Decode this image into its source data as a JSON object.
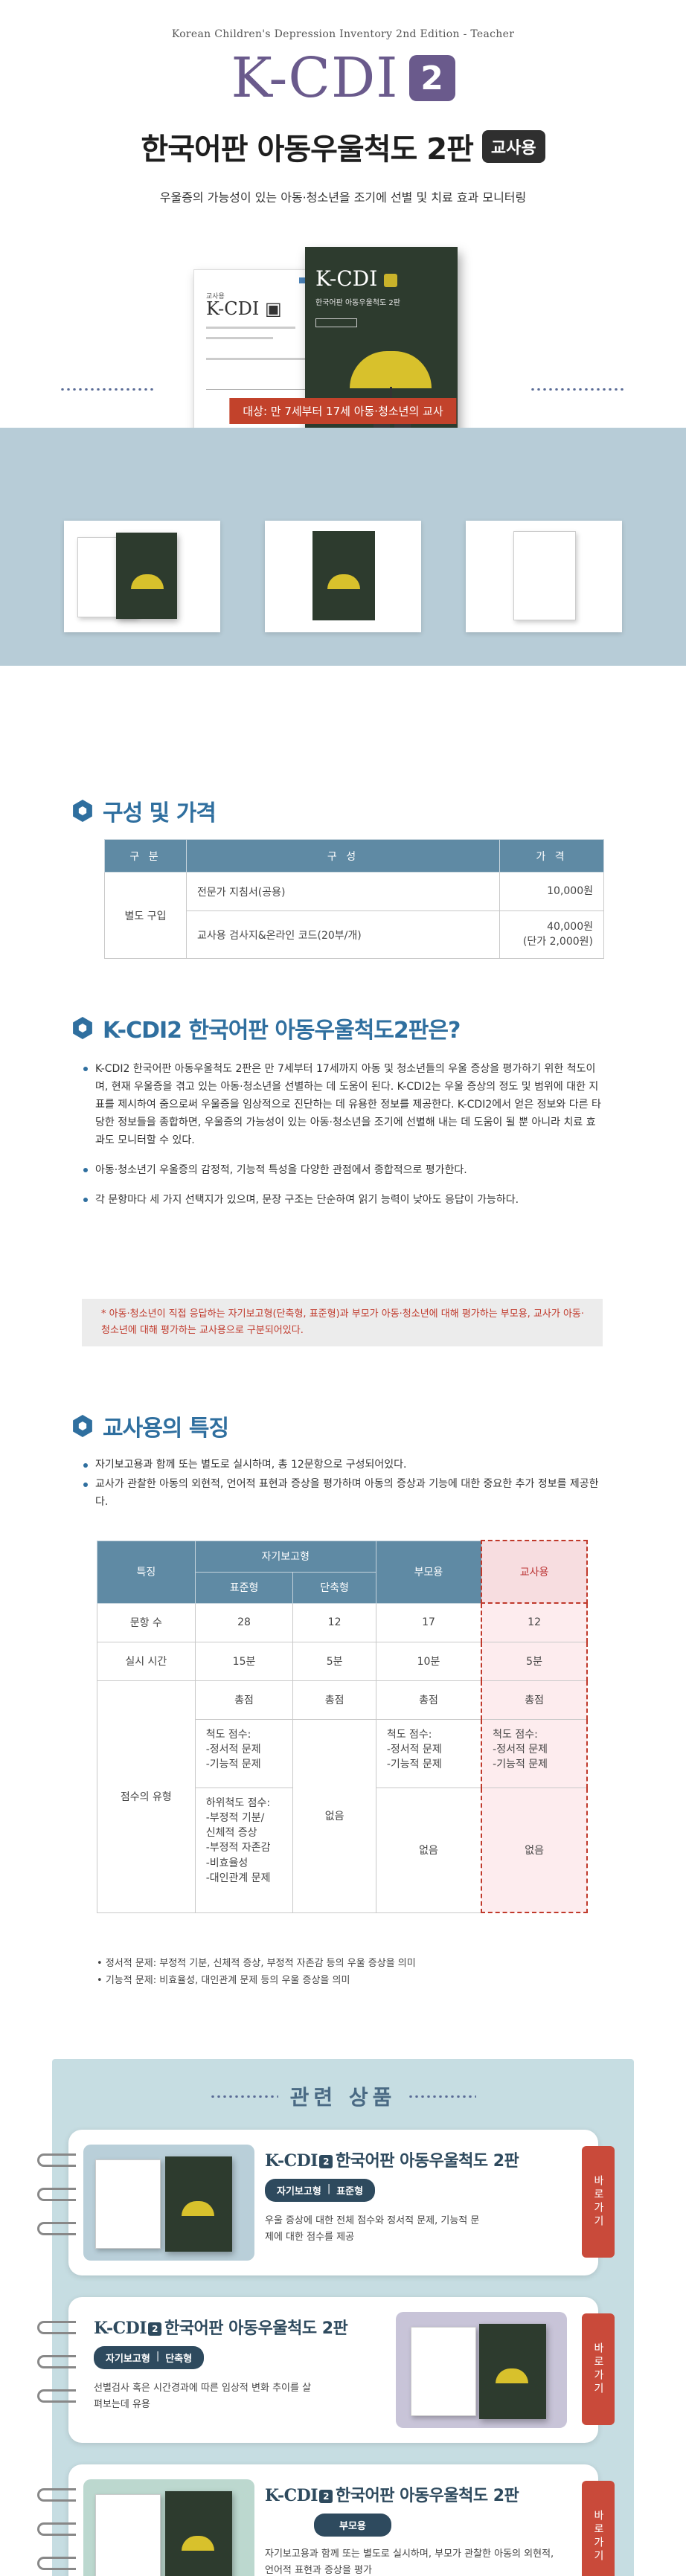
{
  "hero": {
    "eyebrow": "Korean Children's Depression Inventory 2nd Edition - Teacher",
    "logo": "K-CDI",
    "logo_num": "2",
    "title": "한국어판 아동우울척도 2판",
    "title_badge": "교사용",
    "subtitle": "우울증의 가능성이 있는 아동·청소년을 조기에 선별 및 치료 효과 모니터링",
    "target": "대상: 만 7세부터 17세 아동·청소년의 교사"
  },
  "pricing": {
    "heading": "구성 및 가격",
    "columns": [
      "구 분",
      "구 성",
      "가 격"
    ],
    "group_label": "별도 구입",
    "rows": [
      {
        "item": "전문가 지침서(공용)",
        "price": "10,000원"
      },
      {
        "item": "교사용 검사지&온라인 코드(20부/개)",
        "price": "40,000원",
        "price_sub": "(단가 2,000원)"
      }
    ]
  },
  "intro": {
    "heading": "K-CDI2 한국어판 아동우울척도2판은?",
    "bullets": [
      "K-CDI2 한국어판 아동우울척도 2판은 만 7세부터 17세까지 아동 및 청소년들의 우울 증상을 평가하기 위한 척도이며, 현재 우울증을 겪고 있는 아동·청소년을 선별하는 데 도움이 된다. K-CDI2는 우울 증상의 정도 및 범위에 대한 지표를 제시하여 줌으로써 우울증을 임상적으로 진단하는 데 유용한 정보를 제공한다. K-CDI2에서 얻은 정보와 다른 타당한 정보들을 종합하면, 우울증의 가능성이 있는 아동·청소년을 조기에 선별해 내는 데 도움이 될 뿐 아니라 치료 효과도 모니터할 수 있다.",
      "아동·청소년기 우울증의 감정적, 기능적 특성을 다양한 관점에서 종합적으로 평가한다.",
      "각 문항마다 세 가지 선택지가 있으며, 문장 구조는 단순하여 읽기 능력이 낮아도 응답이 가능하다."
    ],
    "note": "* 아동·청소년이 직접 응답하는 자기보고형(단축형, 표준형)과 부모가 아동·청소년에 대해 평가하는 부모용, 교사가 아동·청소년에 대해 평가하는 교사용으로 구분되어있다."
  },
  "features": {
    "heading": "교사용의 특징",
    "bullets": [
      "자기보고용과 함께 또는 별도로 실시하며, 총 12문항으로 구성되어있다.",
      "교사가 관찰한 아동의 외현적, 언어적 표현과 증상을 평가하며 아동의 증상과 기능에 대한 중요한 추가 정보를 제공한다."
    ],
    "table": {
      "h_feature": "특징",
      "h_self": "자기보고형",
      "h_standard": "표준형",
      "h_short": "단축형",
      "h_parent": "부모용",
      "h_teacher": "교사용",
      "rows": [
        {
          "label": "문항 수",
          "standard": "28",
          "short": "12",
          "parent": "17",
          "teacher": "12"
        },
        {
          "label": "실시 시간",
          "standard": "15분",
          "short": "5분",
          "parent": "10분",
          "teacher": "5분"
        }
      ],
      "score_label": "점수의 유형",
      "total": "총점",
      "standard_scale": "척도 점수:\n-정서적 문제\n-기능적 문제",
      "standard_sub": "하위척도 점수:\n-부정적 기분/\n  신체적 증상\n-부정적 자존감\n-비효율성\n-대인관계 문제",
      "short_none": "없음",
      "parent_scale": "척도 점수:\n-정서적 문제\n-기능적 문제",
      "parent_none": "없음",
      "teacher_scale": "척도 점수:\n-정서적 문제\n-기능적 문제",
      "teacher_none": "없음"
    },
    "notes": [
      "정서적 문제: 부정적 기분, 신체적 증상, 부정적 자존감 등의 우울 증상을 의미",
      "기능적 문제: 비효율성, 대인관계 문제 등의 우울 증상을 의미"
    ]
  },
  "related": {
    "heading": "관련 상품",
    "products": [
      {
        "logo": "K-CDI",
        "num": "2",
        "name": "한국어판 아동우울척도 2판",
        "pill_a": "자기보고형",
        "pill_sep": "|",
        "pill_b": "표준형",
        "desc": "우울 증상에 대한 전체 점수와 정서적 문제, 기능적 문제에 대한 점수를 제공",
        "tab": "바로가기"
      },
      {
        "logo": "K-CDI",
        "num": "2",
        "name": "한국어판 아동우울척도 2판",
        "pill_a": "자기보고형",
        "pill_sep": "|",
        "pill_b": "단축형",
        "desc": "선별검사 혹은 시간경과에 따른 임상적 변화 추이를 살펴보는데 유용",
        "tab": "바로가기"
      },
      {
        "logo": "K-CDI",
        "num": "2",
        "name": "한국어판 아동우울척도 2판",
        "pill_a": "부모용",
        "desc": "자기보고용과 함께 또는 별도로 실시하며, 부모가 관찰한 아동의 외현적, 언어적 표현과 증상을 평가",
        "tab": "바로가기"
      }
    ]
  },
  "colors": {
    "brand_purple": "#6a5a8c",
    "section_blue": "#2f6f9f",
    "table_header": "#5f8aa4",
    "accent_red": "#c2422b",
    "strip_bg": "#b7ccd7",
    "related_bg": "#c6dde2"
  }
}
